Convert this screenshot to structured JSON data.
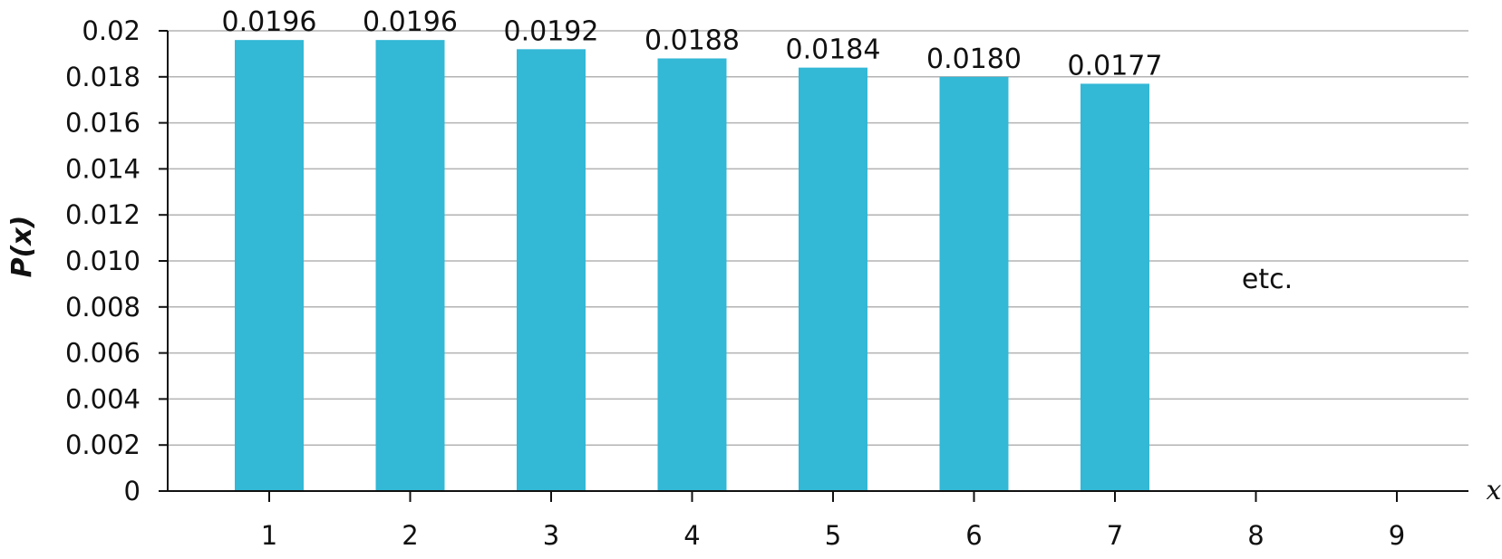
{
  "chart_data": {
    "type": "bar",
    "categories": [
      "1",
      "2",
      "3",
      "4",
      "5",
      "6",
      "7",
      "8",
      "9"
    ],
    "values": [
      0.0196,
      0.0196,
      0.0192,
      0.0188,
      0.0184,
      0.018,
      0.0177,
      null,
      null
    ],
    "data_labels": [
      "0.0196",
      "0.0196",
      "0.0192",
      "0.0188",
      "0.0184",
      "0.0180",
      "0.0177",
      "",
      ""
    ],
    "ylim": [
      0,
      0.02
    ],
    "yticks": [
      0,
      0.002,
      0.004,
      0.006,
      0.008,
      0.01,
      0.012,
      0.014,
      0.016,
      0.018,
      0.02
    ],
    "ytick_labels": [
      "0",
      "0.002",
      "0.004",
      "0.006",
      "0.008",
      "0.010",
      "0.012",
      "0.014",
      "0.016",
      "0.018",
      "0.02"
    ],
    "ylabel": "P(x)",
    "xlabel": "x",
    "annotation": "etc.",
    "grid": true,
    "legend": "none",
    "bar_color": "#33b8d6",
    "grid_color": "#b3b3b3"
  }
}
